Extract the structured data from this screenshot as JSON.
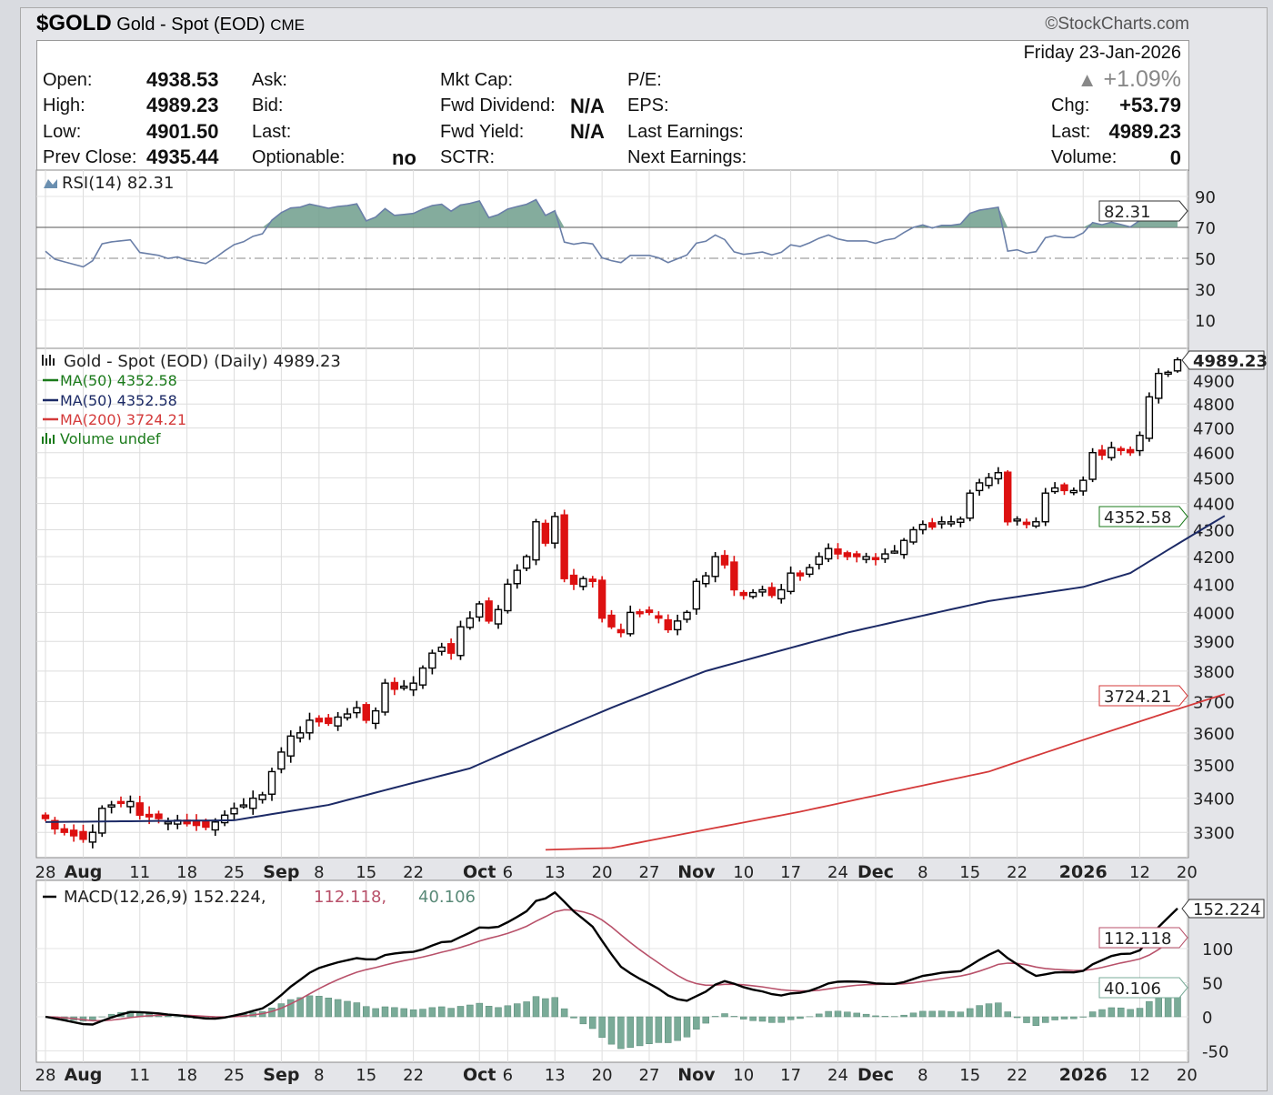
{
  "header": {
    "symbol": "$GOLD",
    "name": "Gold - Spot (EOD)",
    "exchange": "CME",
    "brand": "©StockCharts.com",
    "date": "Friday  23-Jan-2026",
    "pct_change": "+1.09%",
    "chg_label": "Chg:",
    "chg": "+53.79",
    "last_label": "Last:",
    "last": "4989.23",
    "volume_label": "Volume:",
    "volume": "0"
  },
  "quote": {
    "open_label": "Open:",
    "open": "4938.53",
    "high_label": "High:",
    "high": "4989.23",
    "low_label": "Low:",
    "low": "4901.50",
    "prev_label": "Prev Close:",
    "prev": "4935.44",
    "ask_label": "Ask:",
    "bid_label": "Bid:",
    "last_label": "Last:",
    "optionable_label": "Optionable:",
    "optionable": "no",
    "mktcap_label": "Mkt Cap:",
    "fwd_div_label": "Fwd Dividend:",
    "fwd_div": "N/A",
    "fwd_yield_label": "Fwd Yield:",
    "fwd_yield": "N/A",
    "sctr_label": "SCTR:",
    "pe_label": "P/E:",
    "eps_label": "EPS:",
    "last_earn_label": "Last Earnings:",
    "next_earn_label": "Next Earnings:"
  },
  "colors": {
    "up": "#000000",
    "down": "#dd1111",
    "ma50a": "#1a7a1a",
    "ma50b": "#1c2a66",
    "ma200": "#d43a3a",
    "rsi_fill": "#6f9e8c",
    "macd": "#000000",
    "signal": "#b8516a",
    "hist": "#7aab98"
  },
  "chart_data": [
    {
      "type": "candlestick",
      "title": "Gold - Spot (EOD) (Daily) 4989.23",
      "scale": "log",
      "ylim": [
        3230,
        5010
      ],
      "yticks": [
        3300,
        3400,
        3500,
        3600,
        3700,
        3800,
        3900,
        4000,
        4100,
        4200,
        4300,
        4400,
        4500,
        4600,
        4700,
        4800,
        4900
      ],
      "xticks": [
        {
          "label": "28",
          "i": 0
        },
        {
          "label": "Aug",
          "i": 4,
          "bold": true
        },
        {
          "label": "11",
          "i": 10
        },
        {
          "label": "18",
          "i": 15
        },
        {
          "label": "25",
          "i": 20
        },
        {
          "label": "Sep",
          "i": 25,
          "bold": true
        },
        {
          "label": "8",
          "i": 29
        },
        {
          "label": "15",
          "i": 34
        },
        {
          "label": "22",
          "i": 39
        },
        {
          "label": "Oct",
          "i": 46,
          "bold": true
        },
        {
          "label": "6",
          "i": 49
        },
        {
          "label": "13",
          "i": 54
        },
        {
          "label": "20",
          "i": 59
        },
        {
          "label": "27",
          "i": 64
        },
        {
          "label": "Nov",
          "i": 69,
          "bold": true
        },
        {
          "label": "10",
          "i": 74
        },
        {
          "label": "17",
          "i": 79
        },
        {
          "label": "24",
          "i": 84
        },
        {
          "label": "Dec",
          "i": 88,
          "bold": true
        },
        {
          "label": "8",
          "i": 93
        },
        {
          "label": "15",
          "i": 98
        },
        {
          "label": "22",
          "i": 103
        },
        {
          "label": "2026",
          "i": 110,
          "bold": true
        },
        {
          "label": "12",
          "i": 116
        },
        {
          "label": "20",
          "i": 121
        }
      ],
      "closes": [
        3340,
        3310,
        3300,
        3290,
        3280,
        3300,
        3370,
        3380,
        3385,
        3390,
        3350,
        3345,
        3340,
        3330,
        3335,
        3325,
        3320,
        3315,
        3330,
        3350,
        3370,
        3380,
        3400,
        3410,
        3480,
        3540,
        3590,
        3600,
        3640,
        3635,
        3630,
        3650,
        3660,
        3680,
        3640,
        3670,
        3760,
        3740,
        3750,
        3760,
        3810,
        3860,
        3880,
        3860,
        3950,
        3980,
        4030,
        3970,
        4010,
        4100,
        4150,
        4200,
        4330,
        4250,
        4350,
        4120,
        4100,
        4120,
        4110,
        3980,
        3950,
        3930,
        4000,
        4000,
        4000,
        3980,
        3940,
        3970,
        4000,
        4110,
        4130,
        4200,
        4170,
        4080,
        4060,
        4070,
        4080,
        4060,
        4080,
        4140,
        4130,
        4160,
        4200,
        4230,
        4210,
        4200,
        4200,
        4200,
        4190,
        4210,
        4220,
        4260,
        4300,
        4320,
        4310,
        4330,
        4330,
        4340,
        4440,
        4480,
        4500,
        4520,
        4330,
        4340,
        4320,
        4330,
        4440,
        4460,
        4450,
        4450,
        4490,
        4600,
        4590,
        4620,
        4610,
        4600,
        4670,
        4830,
        4930,
        4935,
        4989.23
      ],
      "ma50": [
        [
          0,
          3330
        ],
        [
          20,
          3335
        ],
        [
          30,
          3380
        ],
        [
          45,
          3490
        ],
        [
          60,
          3680
        ],
        [
          70,
          3800
        ],
        [
          85,
          3930
        ],
        [
          100,
          4040
        ],
        [
          110,
          4090
        ],
        [
          115,
          4140
        ],
        [
          125,
          4352.58
        ]
      ],
      "ma200": [
        [
          59,
          3250
        ],
        [
          80,
          3360
        ],
        [
          100,
          3480
        ],
        [
          125,
          3724.21
        ]
      ],
      "legend": [
        {
          "label": "Gold - Spot (EOD) (Daily) 4989.23"
        },
        {
          "label": "MA(50) 4352.58"
        },
        {
          "label": "MA(50) 4352.58"
        },
        {
          "label": "MA(200) 3724.21"
        },
        {
          "label": "Volume undef"
        }
      ],
      "tags": {
        "last": "4989.23",
        "ma50": "4352.58",
        "ma200": "3724.21"
      }
    },
    {
      "type": "line",
      "title": "RSI(14) 82.31",
      "ylim": [
        0,
        100
      ],
      "yticks": [
        10,
        30,
        50,
        70,
        90
      ],
      "last": "82.31"
    },
    {
      "type": "line+bar",
      "title_main": "MACD(12,26,9) 152.224,",
      "title_signal": "112.118,",
      "title_hist": "40.106",
      "yticks": [
        -50,
        0,
        50,
        100
      ],
      "tags": {
        "macd": "152.224",
        "signal": "112.118",
        "hist": "40.106"
      }
    }
  ]
}
